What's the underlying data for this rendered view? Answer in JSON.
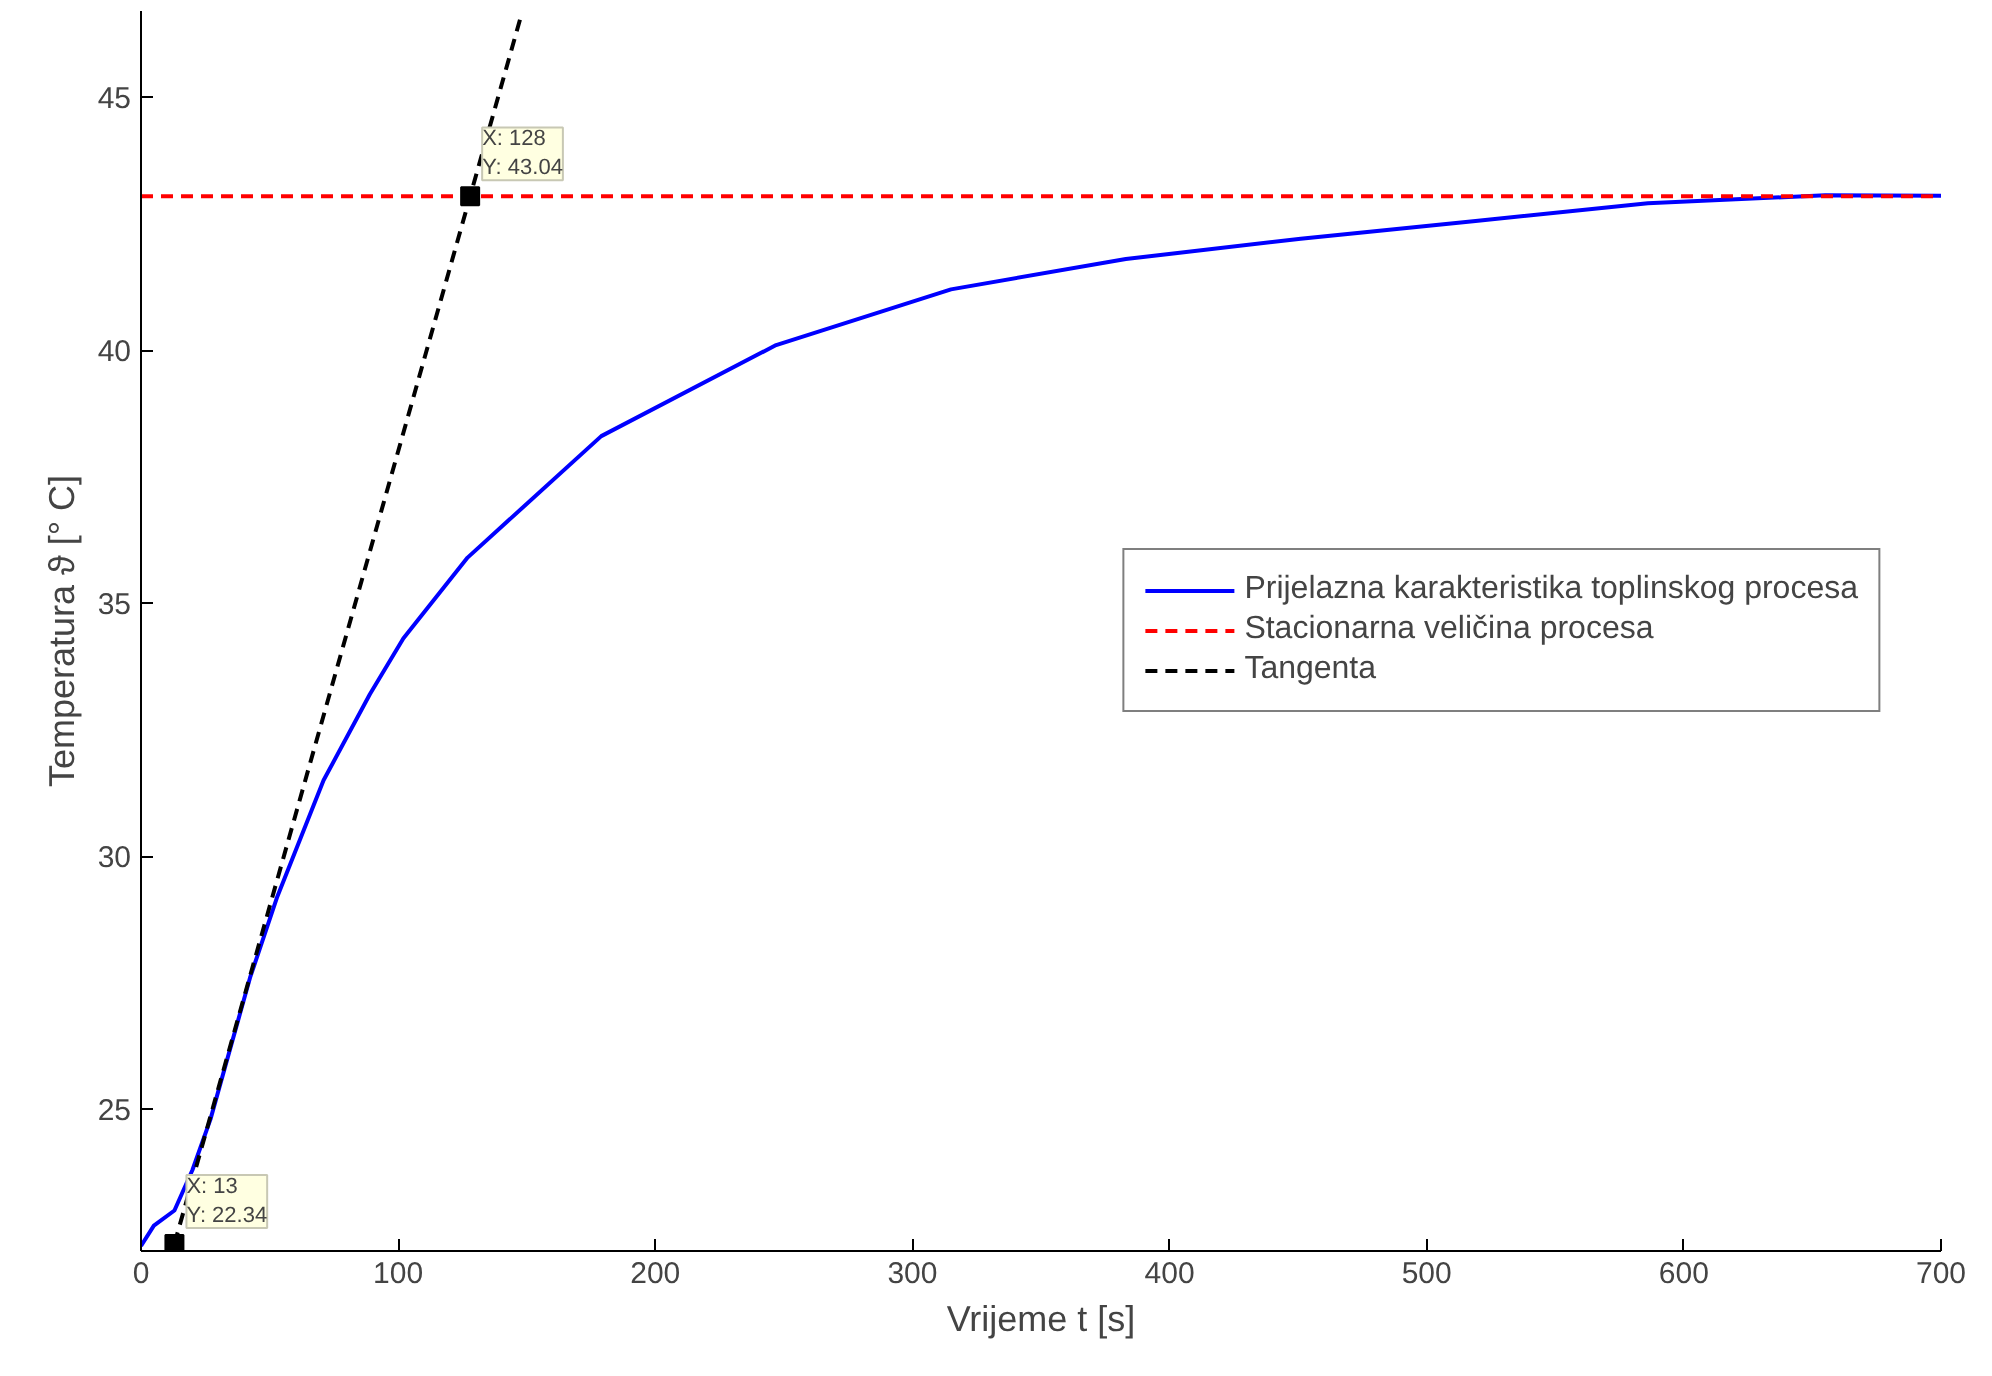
{
  "chart_data": {
    "type": "line",
    "xlabel": "Vrijeme t [s]",
    "ylabel": "Temperatura ϑ [° C]",
    "xlim": [
      0,
      700
    ],
    "xticks": [
      0,
      100,
      200,
      300,
      400,
      500,
      600,
      700
    ],
    "ylim": [
      22.2,
      46.7
    ],
    "yticks": [
      25,
      30,
      35,
      40,
      45
    ],
    "grid": false,
    "legend": "right",
    "marker": "none",
    "series": [
      {
        "name": "Prijelazna karakteristika toplinskog procesa",
        "color": "#0000ff",
        "line_style": "solid",
        "x": [
          0,
          5,
          13,
          20,
          27,
          42.4,
          53,
          71,
          89,
          102,
          127,
          179,
          247,
          315,
          383,
          451,
          519,
          586,
          655,
          700
        ],
        "values": [
          22.3,
          22.7,
          23.0,
          23.8,
          24.8,
          27.6,
          29.2,
          31.5,
          33.2,
          34.3,
          35.9,
          38.3,
          40.1,
          41.2,
          41.8,
          42.2,
          42.55,
          42.9,
          43.06,
          43.05
        ]
      },
      {
        "name": "Stacionarna veličina procesa",
        "color": "#ff0000",
        "line_style": "dashed",
        "x": [
          0,
          700
        ],
        "values": [
          43.04,
          43.04
        ]
      },
      {
        "name": "Tangenta",
        "color": "#000000",
        "line_style": "dashed",
        "x": [
          13,
          128,
          148
        ],
        "values": [
          22.34,
          43.04,
          46.64
        ]
      },
      {
        "type": "scatter",
        "marker": "square",
        "color": "#000000",
        "x": [
          13,
          128
        ],
        "values": [
          22.34,
          43.04
        ]
      }
    ],
    "annotations": [
      {
        "text": "X: 13\nY: 22.34",
        "x": 13,
        "y": 22.34
      },
      {
        "text": "X: 128\nY: 43.04",
        "x": 128,
        "y": 43.04
      }
    ]
  }
}
